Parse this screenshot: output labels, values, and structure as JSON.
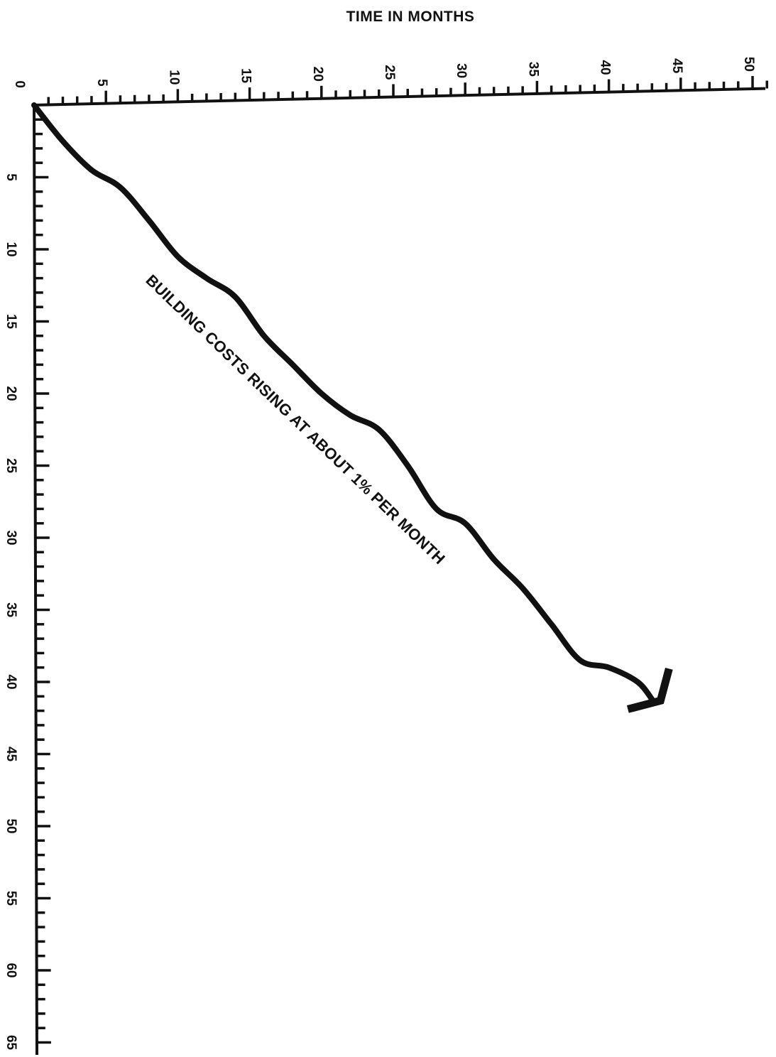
{
  "chart_data": {
    "type": "line",
    "title": "",
    "xlabel": "TIME IN MONTHS",
    "ylabel": "",
    "x_ticks": [
      "0",
      "5",
      "10",
      "15",
      "20",
      "25",
      "30",
      "35",
      "40",
      "45",
      "50"
    ],
    "y_ticks": [
      "5",
      "10",
      "15",
      "20",
      "25",
      "30",
      "35",
      "40",
      "45",
      "50",
      "55",
      "60",
      "65"
    ],
    "xlim": [
      0,
      51
    ],
    "ylim": [
      0,
      66
    ],
    "series": [
      {
        "name": "",
        "x": [
          0,
          2,
          4,
          6,
          8,
          10,
          12,
          14,
          16,
          18,
          20,
          22,
          24,
          26,
          28,
          30,
          32,
          34,
          36,
          38,
          40,
          42,
          43
        ],
        "y": [
          0,
          2.5,
          4.5,
          5.7,
          8,
          10.5,
          12,
          13.3,
          16,
          18,
          20,
          21.5,
          22.5,
          25,
          28,
          29,
          31.5,
          33.5,
          36,
          38.5,
          39,
          40,
          41.2
        ]
      }
    ],
    "annotations": [
      {
        "text": "BUILDING COSTS RISING AT ABOUT 1% PER MONTH"
      }
    ],
    "arrowhead": true,
    "grid": false,
    "legend": "none",
    "colors": {
      "ink": "#111111",
      "background": "#ffffff"
    }
  }
}
